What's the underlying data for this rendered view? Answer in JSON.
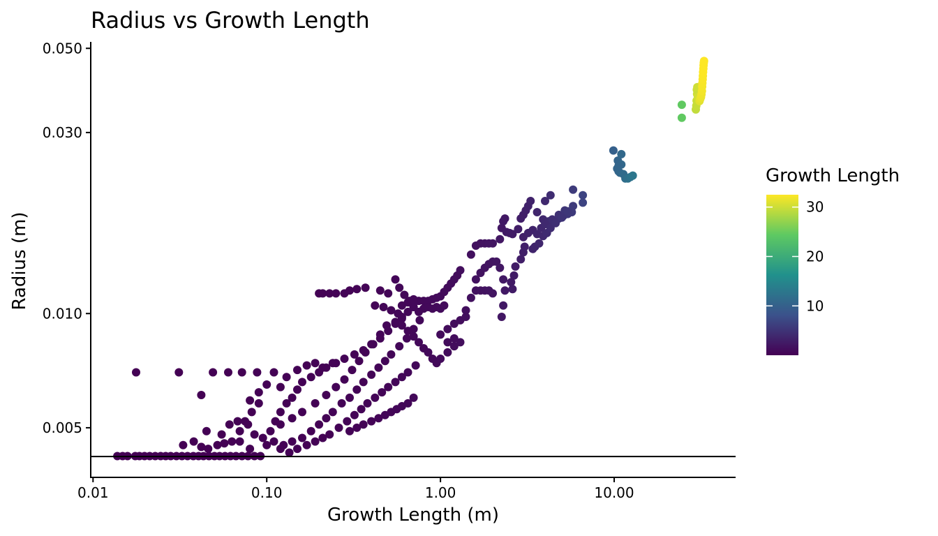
{
  "chart_data": {
    "type": "scatter",
    "title": "Radius vs Growth Length",
    "xlabel": "Growth Length (m)",
    "ylabel": "Radius (m)",
    "x_scale": "log10",
    "y_scale": "log10",
    "xlim": [
      0.0097,
      50
    ],
    "ylim": [
      0.0037,
      0.052
    ],
    "x_ticks": [
      {
        "value": 0.01,
        "label": "0.01"
      },
      {
        "value": 0.1,
        "label": "0.10"
      },
      {
        "value": 1,
        "label": "1.00"
      },
      {
        "value": 10,
        "label": "10.00"
      }
    ],
    "y_ticks": [
      {
        "value": 0.005,
        "label": "0.005"
      },
      {
        "value": 0.01,
        "label": "0.010"
      },
      {
        "value": 0.03,
        "label": "0.030"
      },
      {
        "value": 0.05,
        "label": "0.050"
      }
    ],
    "reference_line": {
      "y": 0.0042
    },
    "grid": false,
    "legend": {
      "title": "Growth Length",
      "placement": "right",
      "type": "colorbar",
      "min": 0.01,
      "max": 32.5,
      "ticks": [
        {
          "value": 10,
          "label": "10"
        },
        {
          "value": 20,
          "label": "20"
        },
        {
          "value": 30,
          "label": "30"
        }
      ],
      "colors": [
        "#440154",
        "#3b528b",
        "#21918c",
        "#5ec962",
        "#fde725"
      ]
    },
    "color_by": "x",
    "points": [
      [
        0.0138,
        0.00421
      ],
      [
        0.0148,
        0.00421
      ],
      [
        0.0158,
        0.00421
      ],
      [
        0.0175,
        0.00421
      ],
      [
        0.0185,
        0.00421
      ],
      [
        0.0198,
        0.00421
      ],
      [
        0.0212,
        0.00421
      ],
      [
        0.0228,
        0.00421
      ],
      [
        0.0245,
        0.00421
      ],
      [
        0.0262,
        0.00421
      ],
      [
        0.028,
        0.00421
      ],
      [
        0.0302,
        0.00421
      ],
      [
        0.0325,
        0.00421
      ],
      [
        0.035,
        0.00421
      ],
      [
        0.0378,
        0.00421
      ],
      [
        0.0405,
        0.00421
      ],
      [
        0.0432,
        0.00421
      ],
      [
        0.0465,
        0.00421
      ],
      [
        0.05,
        0.00421
      ],
      [
        0.0535,
        0.00421
      ],
      [
        0.0575,
        0.00421
      ],
      [
        0.0618,
        0.00421
      ],
      [
        0.0665,
        0.00421
      ],
      [
        0.072,
        0.00421
      ],
      [
        0.078,
        0.00421
      ],
      [
        0.085,
        0.00421
      ],
      [
        0.092,
        0.00421
      ],
      [
        0.0177,
        0.007
      ],
      [
        0.0312,
        0.007
      ],
      [
        0.049,
        0.007
      ],
      [
        0.072,
        0.007
      ],
      [
        0.088,
        0.007
      ],
      [
        0.042,
        0.0061
      ],
      [
        0.11,
        0.007
      ],
      [
        0.06,
        0.007
      ],
      [
        0.033,
        0.0045
      ],
      [
        0.038,
        0.0046
      ],
      [
        0.042,
        0.00445
      ],
      [
        0.046,
        0.0044
      ],
      [
        0.052,
        0.0045
      ],
      [
        0.057,
        0.00455
      ],
      [
        0.063,
        0.0046
      ],
      [
        0.045,
        0.0049
      ],
      [
        0.055,
        0.0048
      ],
      [
        0.061,
        0.0051
      ],
      [
        0.07,
        0.0049
      ],
      [
        0.075,
        0.0052
      ],
      [
        0.082,
        0.0055
      ],
      [
        0.09,
        0.0058
      ],
      [
        0.068,
        0.0052
      ],
      [
        0.078,
        0.0051
      ],
      [
        0.085,
        0.0048
      ],
      [
        0.095,
        0.0047
      ],
      [
        0.105,
        0.0049
      ],
      [
        0.112,
        0.0052
      ],
      [
        0.12,
        0.0055
      ],
      [
        0.13,
        0.0058
      ],
      [
        0.14,
        0.006
      ],
      [
        0.15,
        0.0063
      ],
      [
        0.16,
        0.0066
      ],
      [
        0.18,
        0.0068
      ],
      [
        0.2,
        0.007
      ],
      [
        0.22,
        0.0072
      ],
      [
        0.25,
        0.0074
      ],
      [
        0.11,
        0.0046
      ],
      [
        0.125,
        0.0045
      ],
      [
        0.14,
        0.0046
      ],
      [
        0.16,
        0.0047
      ],
      [
        0.18,
        0.0049
      ],
      [
        0.2,
        0.0051
      ],
      [
        0.22,
        0.0053
      ],
      [
        0.24,
        0.0055
      ],
      [
        0.27,
        0.0058
      ],
      [
        0.3,
        0.006
      ],
      [
        0.33,
        0.0063
      ],
      [
        0.36,
        0.0066
      ],
      [
        0.4,
        0.0069
      ],
      [
        0.44,
        0.0072
      ],
      [
        0.48,
        0.0075
      ],
      [
        0.52,
        0.0078
      ],
      [
        0.58,
        0.0082
      ],
      [
        0.64,
        0.0086
      ],
      [
        0.7,
        0.0091
      ],
      [
        0.76,
        0.0096
      ],
      [
        0.15,
        0.0044
      ],
      [
        0.17,
        0.0045
      ],
      [
        0.19,
        0.0046
      ],
      [
        0.21,
        0.0047
      ],
      [
        0.23,
        0.0048
      ],
      [
        0.26,
        0.005
      ],
      [
        0.29,
        0.0052
      ],
      [
        0.32,
        0.0054
      ],
      [
        0.35,
        0.0056
      ],
      [
        0.38,
        0.0058
      ],
      [
        0.42,
        0.006
      ],
      [
        0.46,
        0.0062
      ],
      [
        0.5,
        0.0064
      ],
      [
        0.55,
        0.0066
      ],
      [
        0.6,
        0.0068
      ],
      [
        0.65,
        0.007
      ],
      [
        0.72,
        0.0073
      ],
      [
        0.3,
        0.0049
      ],
      [
        0.33,
        0.005
      ],
      [
        0.36,
        0.0051
      ],
      [
        0.4,
        0.0052
      ],
      [
        0.44,
        0.0053
      ],
      [
        0.48,
        0.0054
      ],
      [
        0.52,
        0.0055
      ],
      [
        0.56,
        0.0056
      ],
      [
        0.6,
        0.0057
      ],
      [
        0.65,
        0.0058
      ],
      [
        0.7,
        0.006
      ],
      [
        0.1,
        0.0065
      ],
      [
        0.13,
        0.0068
      ],
      [
        0.15,
        0.0071
      ],
      [
        0.17,
        0.0073
      ],
      [
        0.19,
        0.0074
      ],
      [
        0.21,
        0.0072
      ],
      [
        0.24,
        0.0074
      ],
      [
        0.28,
        0.0076
      ],
      [
        0.32,
        0.0078
      ],
      [
        0.36,
        0.008
      ],
      [
        0.4,
        0.0083
      ],
      [
        0.45,
        0.0086
      ],
      [
        0.5,
        0.009
      ],
      [
        0.55,
        0.0094
      ],
      [
        0.6,
        0.0097
      ],
      [
        0.08,
        0.0059
      ],
      [
        0.09,
        0.0062
      ],
      [
        0.12,
        0.0064
      ],
      [
        0.12,
        0.0051
      ],
      [
        0.14,
        0.0053
      ],
      [
        0.16,
        0.0055
      ],
      [
        0.19,
        0.0058
      ],
      [
        0.22,
        0.0061
      ],
      [
        0.25,
        0.0064
      ],
      [
        0.28,
        0.0067
      ],
      [
        0.31,
        0.0071
      ],
      [
        0.34,
        0.0075
      ],
      [
        0.37,
        0.0079
      ],
      [
        0.41,
        0.0083
      ],
      [
        0.45,
        0.0088
      ],
      [
        0.49,
        0.0093
      ],
      [
        0.1,
        0.0045
      ],
      [
        0.12,
        0.0044
      ],
      [
        0.135,
        0.0043
      ],
      [
        0.08,
        0.0044
      ],
      [
        0.07,
        0.0046
      ],
      [
        0.2,
        0.0113
      ],
      [
        0.21,
        0.0113
      ],
      [
        0.23,
        0.0113
      ],
      [
        0.25,
        0.0113
      ],
      [
        0.28,
        0.0113
      ],
      [
        0.3,
        0.0115
      ],
      [
        0.33,
        0.0116
      ],
      [
        0.37,
        0.0117
      ],
      [
        0.45,
        0.0115
      ],
      [
        0.5,
        0.0113
      ],
      [
        0.42,
        0.0105
      ],
      [
        0.47,
        0.0104
      ],
      [
        0.52,
        0.0102
      ],
      [
        0.57,
        0.01
      ],
      [
        0.6,
        0.0098
      ],
      [
        0.65,
        0.0101
      ],
      [
        0.7,
        0.0104
      ],
      [
        0.75,
        0.0108
      ],
      [
        0.8,
        0.0108
      ],
      [
        0.85,
        0.0108
      ],
      [
        0.9,
        0.0109
      ],
      [
        0.95,
        0.011
      ],
      [
        1.0,
        0.0111
      ],
      [
        1.05,
        0.0114
      ],
      [
        1.1,
        0.0117
      ],
      [
        1.15,
        0.012
      ],
      [
        1.2,
        0.0123
      ],
      [
        1.25,
        0.0126
      ],
      [
        1.3,
        0.013
      ],
      [
        0.8,
        0.0103
      ],
      [
        0.85,
        0.0104
      ],
      [
        0.9,
        0.0103
      ],
      [
        0.95,
        0.0104
      ],
      [
        1.0,
        0.0103
      ],
      [
        1.05,
        0.0105
      ],
      [
        0.55,
        0.0095
      ],
      [
        0.6,
        0.0093
      ],
      [
        0.65,
        0.009
      ],
      [
        0.7,
        0.0087
      ],
      [
        0.75,
        0.0084
      ],
      [
        0.8,
        0.0081
      ],
      [
        0.85,
        0.0079
      ],
      [
        0.9,
        0.0076
      ],
      [
        0.95,
        0.0074
      ],
      [
        1.0,
        0.0076
      ],
      [
        1.1,
        0.0079
      ],
      [
        1.2,
        0.0082
      ],
      [
        1.3,
        0.0084
      ],
      [
        1.0,
        0.0088
      ],
      [
        1.1,
        0.0091
      ],
      [
        1.2,
        0.0094
      ],
      [
        1.3,
        0.0096
      ],
      [
        1.4,
        0.0098
      ],
      [
        1.1,
        0.0084
      ],
      [
        1.2,
        0.0086
      ],
      [
        1.4,
        0.0102
      ],
      [
        1.5,
        0.011
      ],
      [
        1.6,
        0.0115
      ],
      [
        1.7,
        0.0115
      ],
      [
        1.8,
        0.0115
      ],
      [
        1.9,
        0.0115
      ],
      [
        2.0,
        0.0113
      ],
      [
        1.6,
        0.0123
      ],
      [
        1.7,
        0.0128
      ],
      [
        1.8,
        0.0132
      ],
      [
        1.9,
        0.0135
      ],
      [
        2.0,
        0.0137
      ],
      [
        2.1,
        0.0137
      ],
      [
        1.5,
        0.0143
      ],
      [
        1.6,
        0.0151
      ],
      [
        1.7,
        0.0153
      ],
      [
        1.8,
        0.0153
      ],
      [
        1.9,
        0.0153
      ],
      [
        2.0,
        0.0153
      ],
      [
        2.2,
        0.0132
      ],
      [
        2.3,
        0.0123
      ],
      [
        2.35,
        0.0115
      ],
      [
        2.3,
        0.0105
      ],
      [
        2.25,
        0.0098
      ],
      [
        2.2,
        0.0157
      ],
      [
        2.25,
        0.0168
      ],
      [
        2.3,
        0.0175
      ],
      [
        2.35,
        0.0178
      ],
      [
        2.4,
        0.0164
      ],
      [
        2.5,
        0.0163
      ],
      [
        2.6,
        0.0162
      ],
      [
        2.8,
        0.0167
      ],
      [
        2.9,
        0.0178
      ],
      [
        3.0,
        0.0182
      ],
      [
        3.1,
        0.0187
      ],
      [
        3.2,
        0.0192
      ],
      [
        3.3,
        0.0198
      ],
      [
        3.6,
        0.0185
      ],
      [
        3.9,
        0.0177
      ],
      [
        4.2,
        0.0175
      ],
      [
        4.5,
        0.0175
      ],
      [
        4.8,
        0.0178
      ],
      [
        5.1,
        0.0181
      ],
      [
        5.4,
        0.0183
      ],
      [
        5.7,
        0.0185
      ],
      [
        3.0,
        0.0159
      ],
      [
        3.2,
        0.0163
      ],
      [
        3.4,
        0.0166
      ],
      [
        3.6,
        0.0162
      ],
      [
        3.8,
        0.0168
      ],
      [
        4.0,
        0.0172
      ],
      [
        4.4,
        0.0177
      ],
      [
        4.8,
        0.0182
      ],
      [
        5.2,
        0.0187
      ],
      [
        2.9,
        0.0139
      ],
      [
        3.0,
        0.0145
      ],
      [
        3.05,
        0.015
      ],
      [
        3.4,
        0.0148
      ],
      [
        3.5,
        0.015
      ],
      [
        3.7,
        0.0153
      ],
      [
        3.9,
        0.016
      ],
      [
        4.1,
        0.0163
      ],
      [
        4.3,
        0.0168
      ],
      [
        4.6,
        0.0173
      ],
      [
        5.0,
        0.0179
      ],
      [
        5.4,
        0.0186
      ],
      [
        5.8,
        0.0192
      ],
      [
        4.0,
        0.0198
      ],
      [
        4.3,
        0.0205
      ],
      [
        5.8,
        0.0212
      ],
      [
        6.6,
        0.0205
      ],
      [
        6.6,
        0.0196
      ],
      [
        2.7,
        0.0133
      ],
      [
        2.65,
        0.0126
      ],
      [
        2.55,
        0.0121
      ],
      [
        2.6,
        0.0116
      ],
      [
        0.55,
        0.0123
      ],
      [
        0.58,
        0.0117
      ],
      [
        0.62,
        0.0112
      ],
      [
        0.66,
        0.0108
      ],
      [
        0.7,
        0.0104
      ],
      [
        0.75,
        0.0101
      ],
      [
        0.6,
        0.0105
      ],
      [
        0.65,
        0.0107
      ],
      [
        0.7,
        0.0109
      ],
      [
        9.9,
        0.0269
      ],
      [
        10.5,
        0.0253
      ],
      [
        10.4,
        0.0241
      ],
      [
        10.6,
        0.0237
      ],
      [
        10.8,
        0.0235
      ],
      [
        11.0,
        0.0247
      ],
      [
        11.3,
        0.0233
      ],
      [
        11.6,
        0.0227
      ],
      [
        12.0,
        0.0227
      ],
      [
        12.4,
        0.0229
      ],
      [
        12.8,
        0.0231
      ],
      [
        11.0,
        0.0263
      ],
      [
        10.6,
        0.0245
      ],
      [
        24.5,
        0.0328
      ],
      [
        24.5,
        0.0355
      ],
      [
        29.5,
        0.0345
      ],
      [
        29.7,
        0.0353
      ],
      [
        29.8,
        0.0364
      ],
      [
        30.0,
        0.0379
      ],
      [
        29.9,
        0.0389
      ],
      [
        30.1,
        0.0395
      ],
      [
        30.3,
        0.0372
      ],
      [
        31.0,
        0.0363
      ],
      [
        31.3,
        0.0368
      ],
      [
        31.6,
        0.0372
      ],
      [
        31.8,
        0.0378
      ],
      [
        32.0,
        0.0386
      ],
      [
        32.1,
        0.0396
      ],
      [
        32.2,
        0.0405
      ],
      [
        32.3,
        0.0414
      ],
      [
        32.4,
        0.0423
      ],
      [
        32.5,
        0.0433
      ],
      [
        32.6,
        0.0442
      ],
      [
        32.7,
        0.0451
      ],
      [
        32.8,
        0.0458
      ],
      [
        32.9,
        0.0463
      ]
    ]
  }
}
